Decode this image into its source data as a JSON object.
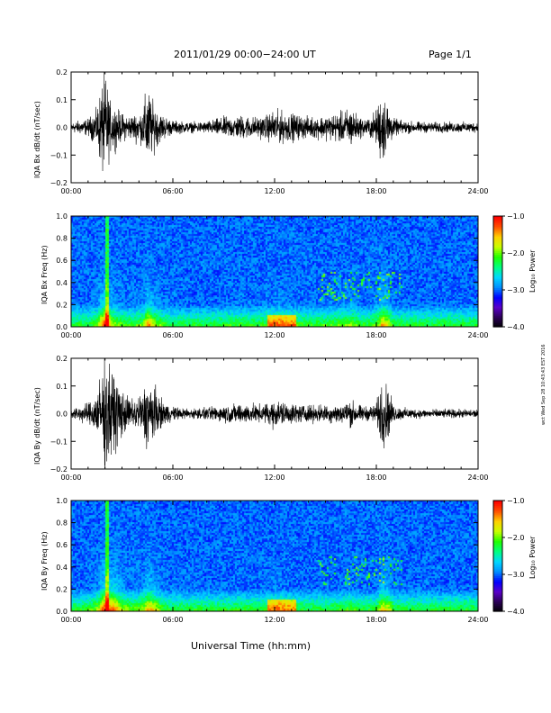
{
  "header": {
    "title": "2011/01/29  00:00−24:00 UT",
    "page": "Page 1/1"
  },
  "footer": {
    "xlabel": "Universal Time (hh:mm)",
    "side_stamp": "wct Wed Sep 28 10:43:43 EST 2016"
  },
  "colors": {
    "background": "#ffffff",
    "axis": "#000000",
    "spectrogram_base": "#1e0a5a",
    "colorbar": [
      "#000000",
      "#2a0055",
      "#5a00c8",
      "#0000ff",
      "#0090ff",
      "#00d8ff",
      "#00ff80",
      "#20ff00",
      "#c8ff00",
      "#ffd000",
      "#ff5000",
      "#ff0000"
    ]
  },
  "chart_data": [
    {
      "type": "line",
      "ylabel": "IQA Bx dB/dt (nT/sec)",
      "xlim": [
        0,
        24
      ],
      "ylim": [
        -0.2,
        0.2
      ],
      "x_ticks": [
        "00:00",
        "06:00",
        "12:00",
        "18:00",
        "24:00"
      ],
      "y_ticks": [
        "0.2",
        "0.1",
        "0.0",
        "−0.1",
        "−0.2"
      ],
      "y_tick_values": [
        0.2,
        0.1,
        0.0,
        -0.1,
        -0.2
      ],
      "envelope_hours": [
        0,
        1.0,
        1.5,
        1.9,
        2.1,
        2.3,
        3.0,
        3.5,
        4.2,
        4.5,
        4.8,
        5.3,
        6.0,
        7.0,
        8.0,
        9.0,
        10.0,
        11.0,
        11.5,
        12.0,
        12.5,
        13.0,
        13.5,
        14.0,
        15.0,
        16.0,
        16.5,
        17.0,
        17.5,
        18.0,
        18.3,
        18.7,
        19.0,
        19.5,
        20.0,
        21.0,
        22.0,
        24.0
      ],
      "envelope_amp": [
        0.03,
        0.05,
        0.1,
        0.3,
        0.28,
        0.15,
        0.08,
        0.07,
        0.1,
        0.25,
        0.15,
        0.08,
        0.04,
        0.03,
        0.035,
        0.06,
        0.07,
        0.06,
        0.07,
        0.1,
        0.09,
        0.08,
        0.07,
        0.06,
        0.07,
        0.09,
        0.12,
        0.06,
        0.05,
        0.1,
        0.22,
        0.14,
        0.05,
        0.04,
        0.035,
        0.03,
        0.03,
        0.03
      ]
    },
    {
      "type": "heatmap",
      "ylabel": "IQA Bx Freq (Hz)",
      "xlim": [
        0,
        24
      ],
      "ylim": [
        0.0,
        1.0
      ],
      "x_ticks": [
        "00:00",
        "06:00",
        "12:00",
        "18:00",
        "24:00"
      ],
      "y_ticks": [
        "1.0",
        "0.8",
        "0.6",
        "0.4",
        "0.2",
        "0.0"
      ],
      "y_tick_values": [
        1.0,
        0.8,
        0.6,
        0.4,
        0.2,
        0.0
      ],
      "colorbar": {
        "label": "Log₁₀ Power",
        "ticks": [
          "−1.0",
          "−2.0",
          "−3.0",
          "−4.0"
        ],
        "tick_values": [
          -1,
          -2,
          -3,
          -4
        ],
        "range": [
          -4,
          -1
        ]
      }
    },
    {
      "type": "line",
      "ylabel": "IQA By dB/dt (nT/sec)",
      "xlim": [
        0,
        24
      ],
      "ylim": [
        -0.2,
        0.2
      ],
      "x_ticks": [
        "00:00",
        "06:00",
        "12:00",
        "18:00",
        "24:00"
      ],
      "y_ticks": [
        "0.2",
        "0.1",
        "0.0",
        "−0.1",
        "−0.2"
      ],
      "y_tick_values": [
        0.2,
        0.1,
        0.0,
        -0.1,
        -0.2
      ],
      "envelope_hours": [
        0,
        1.0,
        1.5,
        1.9,
        2.1,
        2.5,
        3.0,
        3.5,
        4.2,
        4.5,
        4.8,
        5.3,
        6.0,
        7.0,
        8.0,
        9.0,
        10.0,
        11.0,
        11.5,
        12.0,
        12.5,
        13.0,
        13.5,
        14.0,
        15.0,
        16.0,
        16.5,
        17.0,
        17.5,
        18.0,
        18.3,
        18.7,
        19.0,
        19.5,
        20.0,
        21.0,
        22.0,
        24.0
      ],
      "envelope_amp": [
        0.03,
        0.06,
        0.12,
        0.3,
        0.3,
        0.25,
        0.14,
        0.08,
        0.12,
        0.22,
        0.18,
        0.08,
        0.04,
        0.03,
        0.035,
        0.05,
        0.06,
        0.05,
        0.06,
        0.08,
        0.07,
        0.06,
        0.05,
        0.05,
        0.05,
        0.06,
        0.08,
        0.05,
        0.04,
        0.06,
        0.2,
        0.15,
        0.05,
        0.035,
        0.03,
        0.025,
        0.025,
        0.025
      ]
    },
    {
      "type": "heatmap",
      "ylabel": "IQA By Freq (Hz)",
      "xlim": [
        0,
        24
      ],
      "ylim": [
        0.0,
        1.0
      ],
      "x_ticks": [
        "00:00",
        "06:00",
        "12:00",
        "18:00",
        "24:00"
      ],
      "y_ticks": [
        "1.0",
        "0.8",
        "0.6",
        "0.4",
        "0.2",
        "0.0"
      ],
      "y_tick_values": [
        1.0,
        0.8,
        0.6,
        0.4,
        0.2,
        0.0
      ],
      "colorbar": {
        "label": "Log₁₀ Power",
        "ticks": [
          "−1.0",
          "−2.0",
          "−3.0",
          "−4.0"
        ],
        "tick_values": [
          -1,
          -2,
          -3,
          -4
        ],
        "range": [
          -4,
          -1
        ]
      }
    }
  ]
}
